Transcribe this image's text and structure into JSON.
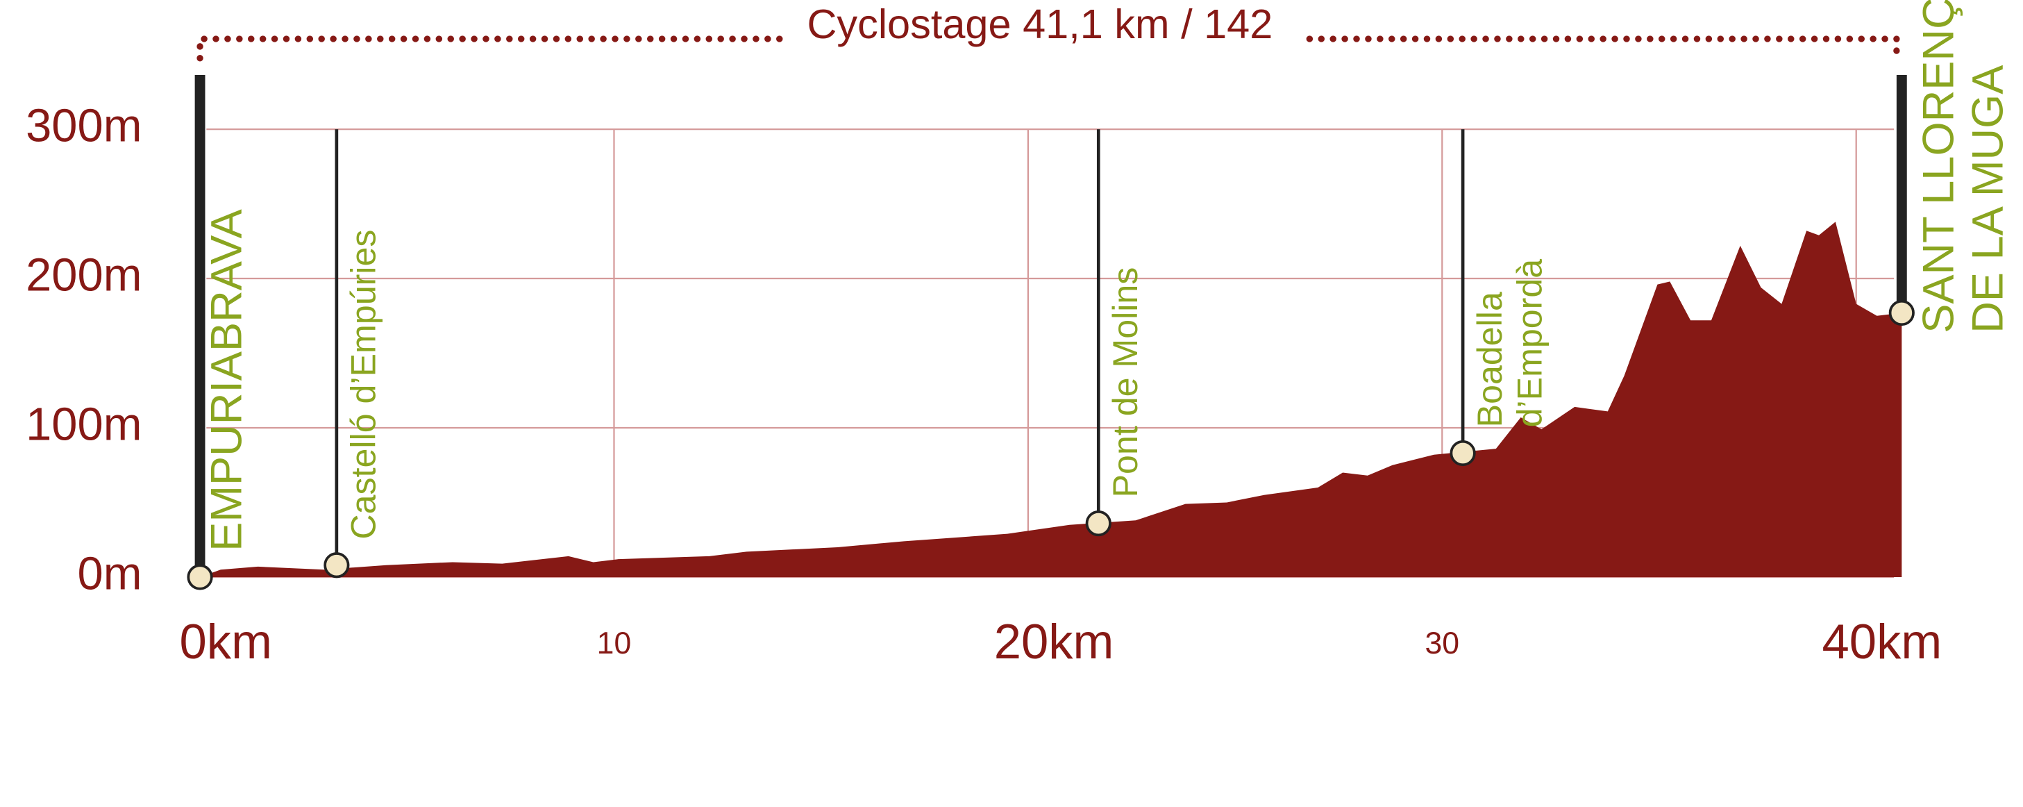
{
  "chart_data": {
    "type": "area",
    "title": "Cyclostage 41,1 km / 142",
    "color": "#861915",
    "grid": true,
    "x": [
      0,
      0.5,
      1.4,
      3,
      4.5,
      6.1,
      7.3,
      8.9,
      9.5,
      10.1,
      12.3,
      13.2,
      15.4,
      17,
      19.5,
      21,
      22.6,
      23.8,
      24.8,
      25.7,
      27,
      27.6,
      28.2,
      28.8,
      29.8,
      31.3,
      31.9,
      32.4,
      33.2,
      34,
      34.4,
      35.2,
      35.5,
      36,
      36.5,
      37.2,
      37.7,
      38.2,
      38.8,
      39.1,
      39.5,
      40,
      40.5,
      41.1
    ],
    "values": [
      0,
      5,
      7,
      5,
      8,
      10,
      9,
      14,
      10,
      12,
      14,
      17,
      20,
      24,
      29,
      35,
      38,
      49,
      50,
      55,
      60,
      70,
      68,
      75,
      82,
      86,
      107,
      99,
      114,
      111,
      135,
      196,
      198,
      172,
      172,
      222,
      194,
      183,
      232,
      229,
      238,
      183,
      175,
      177
    ],
    "xlim": [
      0,
      41.1
    ],
    "ylim": [
      0,
      300
    ],
    "xticks": [
      {
        "value": 0,
        "label": "0km"
      },
      10,
      {
        "value": 20,
        "label": "20km"
      },
      30,
      {
        "value": 40,
        "label": "40km"
      }
    ],
    "yticks": [
      {
        "value": 0,
        "label": "0m"
      },
      {
        "value": 100,
        "label": "100m"
      },
      {
        "value": 200,
        "label": "200m"
      },
      {
        "value": 300,
        "label": "300m"
      }
    ],
    "waypoints": [
      {
        "label": [
          "EMPURIABRAVA"
        ],
        "x": 0,
        "elevation": 0
      },
      {
        "label": [
          "Castelló d’Empúries"
        ],
        "x": 3.3,
        "elevation": 8
      },
      {
        "label": [
          "Pont de Molins"
        ],
        "x": 21.7,
        "elevation": 36
      },
      {
        "label": [
          "Boadella",
          "d’Empordà"
        ],
        "x": 30.5,
        "elevation": 83
      },
      {
        "label": [
          "SANT LLORENÇ",
          "DE LA MUGA"
        ],
        "x": 41.1,
        "elevation": 177
      }
    ]
  }
}
